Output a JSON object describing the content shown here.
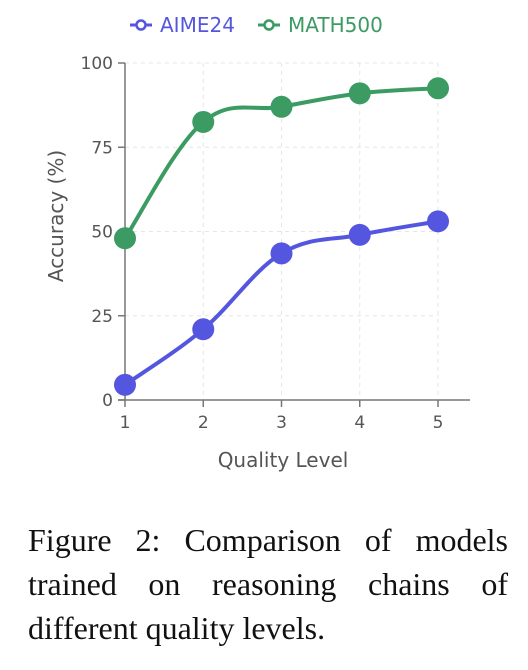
{
  "caption": "Figure 2: Comparison of models trained on reasoning chains of different quality levels.",
  "chart_data": {
    "type": "line",
    "title": "",
    "xlabel": "Quality Level",
    "ylabel": "Accuracy (%)",
    "x": [
      1,
      2,
      3,
      4,
      5
    ],
    "xticks": [
      "1",
      "2",
      "3",
      "4",
      "5"
    ],
    "yticks": [
      "0",
      "25",
      "50",
      "75",
      "100"
    ],
    "ylim": [
      0,
      100
    ],
    "grid": true,
    "legend_position": "top-center",
    "series": [
      {
        "name": "AIME24",
        "color": "#5556e0",
        "values": [
          4.5,
          21,
          43.5,
          49,
          53
        ]
      },
      {
        "name": "MATH500",
        "color": "#3b9b63",
        "values": [
          48,
          82.5,
          87,
          91,
          92.5
        ]
      }
    ]
  }
}
